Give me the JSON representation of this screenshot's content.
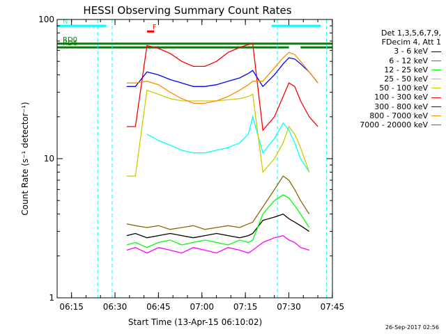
{
  "chart_data": {
    "type": "line",
    "title": "HESSI Observing Summary Count Rates",
    "xlabel": "Start Time (13-Apr-15 06:10:02)",
    "ylabel": "Count Rate (s⁻¹ detector⁻¹)",
    "xscale": "time (minutes after 06:10:02)",
    "yscale": "log",
    "xlim": [
      0.0,
      95.0
    ],
    "ylim": [
      1,
      100
    ],
    "x_ticks": [
      "06:15",
      "06:30",
      "06:45",
      "07:00",
      "07:15",
      "07:30",
      "07:45"
    ],
    "y_ticks": [
      "1",
      "10",
      "100"
    ],
    "legend_position": "right",
    "legend_header": [
      "Det 1,3,5,6,7,9,",
      "FDecim 4, Att 1"
    ],
    "x": [
      20.0,
      24.0,
      27.0,
      31.0,
      35.0,
      39.0,
      43.0,
      47.0,
      51.0,
      55.0,
      59.0,
      63.0,
      66.0,
      67.5,
      71.0,
      75.0,
      78.0,
      80.0,
      82.0,
      84.0,
      87.0,
      90.0,
      92.0,
      95.0
    ],
    "series": [
      {
        "name": "3 - 6 keV",
        "color": "#000000",
        "values": [
          null,
          2.8,
          2.9,
          2.7,
          2.8,
          2.9,
          2.8,
          2.7,
          2.8,
          2.9,
          2.8,
          2.7,
          2.8,
          2.9,
          3.6,
          3.8,
          4.0,
          3.7,
          3.5,
          3.3,
          3.0,
          null,
          null,
          null
        ]
      },
      {
        "name": "6 - 12 keV",
        "color": "#ff00ff",
        "values": [
          null,
          2.2,
          2.3,
          2.1,
          2.3,
          2.2,
          2.1,
          2.3,
          2.2,
          2.1,
          2.3,
          2.2,
          2.1,
          2.2,
          2.5,
          2.7,
          2.8,
          2.6,
          2.5,
          2.3,
          2.2,
          null,
          null,
          null
        ]
      },
      {
        "name": "12 - 25 keV",
        "color": "#00ff00",
        "values": [
          null,
          2.4,
          2.5,
          2.3,
          2.5,
          2.6,
          2.4,
          2.5,
          2.6,
          2.5,
          2.4,
          2.6,
          2.5,
          2.6,
          4.0,
          5.0,
          5.5,
          5.2,
          4.6,
          4.0,
          3.2,
          null,
          null,
          null
        ]
      },
      {
        "name": "25 - 50 keV",
        "color": "#00ffff",
        "values": [
          null,
          null,
          null,
          15.0,
          13.5,
          12.5,
          11.5,
          11.0,
          11.0,
          11.5,
          12.0,
          13.0,
          15.0,
          20.0,
          11.0,
          14.0,
          18.0,
          16.0,
          13.0,
          10.0,
          8.0,
          null,
          null,
          null
        ]
      },
      {
        "name": "50 - 100 keV",
        "color": "#cccc00",
        "values": [
          null,
          7.5,
          7.5,
          31.0,
          29.0,
          27.0,
          26.0,
          26.0,
          26.0,
          26.0,
          26.5,
          27.0,
          28.0,
          29.0,
          8.0,
          10.0,
          13.0,
          17.0,
          15.0,
          12.0,
          8.0,
          null,
          null,
          null
        ]
      },
      {
        "name": "100 - 300 keV",
        "color": "#ff0000",
        "values": [
          null,
          17.0,
          17.0,
          65.0,
          62.0,
          57.0,
          50.0,
          46.0,
          46.0,
          50.0,
          58.0,
          63.0,
          66.0,
          67.0,
          16.0,
          20.0,
          28.0,
          35.0,
          33.0,
          26.0,
          20.0,
          17.0,
          null,
          null
        ]
      },
      {
        "name": "300 - 800 keV",
        "color": "#0000ff",
        "values": [
          null,
          33.0,
          33.0,
          42.0,
          40.0,
          37.0,
          35.0,
          33.0,
          33.0,
          34.0,
          36.0,
          38.0,
          41.0,
          43.0,
          33.0,
          40.0,
          48.0,
          53.0,
          52.0,
          48.0,
          42.0,
          35.0,
          null,
          null
        ]
      },
      {
        "name": "800 - 7000 keV",
        "color": "#ff8c00",
        "values": [
          null,
          35.0,
          35.0,
          36.0,
          34.0,
          30.0,
          27.0,
          25.0,
          25.0,
          26.0,
          28.0,
          31.0,
          34.0,
          36.0,
          36.0,
          45.0,
          53.0,
          58.0,
          56.0,
          50.0,
          42.0,
          35.0,
          null,
          null
        ]
      },
      {
        "name": "7000 - 20000 keV",
        "color": "#8b6508",
        "values": [
          null,
          3.4,
          3.3,
          3.2,
          3.3,
          3.1,
          3.2,
          3.3,
          3.1,
          3.2,
          3.3,
          3.2,
          3.4,
          3.5,
          4.5,
          6.0,
          7.5,
          7.0,
          6.0,
          5.0,
          4.0,
          null,
          null,
          null
        ]
      }
    ],
    "flags": [
      {
        "label": "N",
        "color": "#00ffff",
        "ranges": [
          [
            0.0,
            17.0
          ],
          [
            74.0,
            91.0
          ]
        ],
        "y": 90.0
      },
      {
        "label": "RD0",
        "color": "#008000",
        "ranges": [
          [
            0.0,
            95.0
          ]
        ],
        "y": 67.0
      },
      {
        "label": "RD6",
        "color": "#008000",
        "ranges": [
          [
            0.0,
            80.0
          ],
          [
            84.0,
            95.0
          ]
        ],
        "y": 63.0
      },
      {
        "label": "F",
        "color": "#ff0000",
        "ranges": [
          [
            31.0,
            33.5
          ]
        ],
        "y": 82.0
      }
    ],
    "vlines": [
      {
        "x": 14.0,
        "color": "#00ffff",
        "style": "dashed"
      },
      {
        "x": 19.0,
        "color": "#00ffff",
        "style": "dashed"
      },
      {
        "x": 76.0,
        "color": "#00ffff",
        "style": "dashed"
      },
      {
        "x": 93.0,
        "color": "#00ffff",
        "style": "dashed"
      }
    ],
    "timestamp": "26-Sep-2017 02:56"
  }
}
